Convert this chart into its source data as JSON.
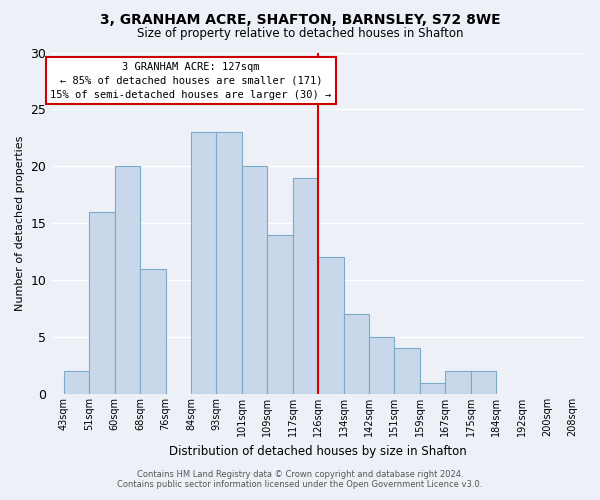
{
  "title": "3, GRANHAM ACRE, SHAFTON, BARNSLEY, S72 8WE",
  "subtitle": "Size of property relative to detached houses in Shafton",
  "xlabel": "Distribution of detached houses by size in Shafton",
  "ylabel": "Number of detached properties",
  "bin_labels": [
    "43sqm",
    "51sqm",
    "60sqm",
    "68sqm",
    "76sqm",
    "84sqm",
    "93sqm",
    "101sqm",
    "109sqm",
    "117sqm",
    "126sqm",
    "134sqm",
    "142sqm",
    "151sqm",
    "159sqm",
    "167sqm",
    "175sqm",
    "184sqm",
    "192sqm",
    "200sqm",
    "208sqm"
  ],
  "bar_values": [
    2,
    16,
    20,
    11,
    0,
    23,
    23,
    20,
    14,
    19,
    12,
    7,
    5,
    4,
    1,
    2,
    2,
    0,
    0,
    0
  ],
  "bar_color": "#c8d8ea",
  "bar_edge_color": "#7aaac8",
  "background_color": "#edf1f7",
  "grid_color": "#ffffff",
  "vline_color": "#dd0000",
  "vline_x_index": 10,
  "annotation_title": "3 GRANHAM ACRE: 127sqm",
  "annotation_line1": "← 85% of detached houses are smaller (171)",
  "annotation_line2": "15% of semi-detached houses are larger (30) →",
  "annotation_box_facecolor": "#ffffff",
  "annotation_box_edgecolor": "#cc0000",
  "footer1": "Contains HM Land Registry data © Crown copyright and database right 2024.",
  "footer2": "Contains public sector information licensed under the Open Government Licence v3.0.",
  "ylim": [
    0,
    30
  ],
  "yticks": [
    0,
    5,
    10,
    15,
    20,
    25,
    30
  ]
}
